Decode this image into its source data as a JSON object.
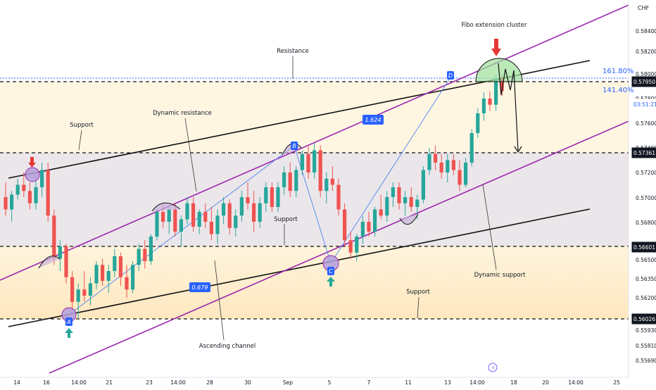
{
  "chart_data": {
    "type": "candlestick",
    "currency": "CHF",
    "ylim": [
      0.5547,
      0.5855
    ],
    "x_ticks": [
      "14",
      "16",
      "14:00",
      "21",
      "23",
      "14:00",
      "28",
      "30",
      "Sep",
      "5",
      "7",
      "11",
      "13",
      "14:00",
      "18",
      "20",
      "14:00",
      "25"
    ],
    "y_ticks": [
      "0.58400",
      "0.58200",
      "0.58000",
      "0.57800",
      "0.57600",
      "0.57400",
      "0.57200",
      "0.57000",
      "0.56800",
      "0.56600",
      "0.56500",
      "0.56350",
      "0.56200",
      "0.56026",
      "0.55930",
      "0.55810",
      "0.55690"
    ],
    "price_badges": [
      {
        "label": "0.57950",
        "value": 0.5795,
        "style": "dark"
      },
      {
        "label": "03:51:21",
        "value": 0.5786,
        "style": "time"
      },
      {
        "label": "0.57361",
        "value": 0.57361,
        "style": "dark"
      },
      {
        "label": "0.56601",
        "value": 0.56601,
        "style": "dark"
      },
      {
        "label": "0.56026",
        "value": 0.56026,
        "style": "dark"
      }
    ],
    "horizontal_levels": [
      0.5795,
      0.57361,
      0.56601,
      0.56026
    ],
    "fib_levels": [
      {
        "label": "161.80%",
        "value": 0.5799
      },
      {
        "label": "141.40%",
        "value": 0.57945
      }
    ],
    "pattern_points": [
      {
        "label": "A",
        "date_index": 12,
        "price": 0.5604
      },
      {
        "label": "B",
        "date_index": 51,
        "price": 0.57435
      },
      {
        "label": "C",
        "date_index": 58,
        "price": 0.5648
      },
      {
        "label": "D",
        "date_index": 79,
        "price": 0.5799
      }
    ],
    "ratios": [
      "0.679",
      "1.624"
    ],
    "annotations": [
      "Fibo extension cluster",
      "Resistance",
      "Support",
      "Dynamic resistance",
      "Support",
      "Ascending channel",
      "Dynamic support",
      "Support"
    ],
    "ohlc": [
      [
        0.57,
        0.5712,
        0.5685,
        0.569
      ],
      [
        0.569,
        0.5705,
        0.568,
        0.5702
      ],
      [
        0.5702,
        0.5715,
        0.5698,
        0.571
      ],
      [
        0.571,
        0.572,
        0.57,
        0.5705
      ],
      [
        0.5705,
        0.5712,
        0.569,
        0.5695
      ],
      [
        0.5695,
        0.5715,
        0.569,
        0.5708
      ],
      [
        0.5708,
        0.5728,
        0.57,
        0.5722
      ],
      [
        0.5722,
        0.5728,
        0.568,
        0.5685
      ],
      [
        0.5685,
        0.569,
        0.5645,
        0.565
      ],
      [
        0.565,
        0.5665,
        0.564,
        0.566
      ],
      [
        0.566,
        0.5662,
        0.563,
        0.5635
      ],
      [
        0.5635,
        0.564,
        0.5608,
        0.5615
      ],
      [
        0.5615,
        0.563,
        0.5602,
        0.5625
      ],
      [
        0.5625,
        0.564,
        0.5615,
        0.562
      ],
      [
        0.562,
        0.5635,
        0.5612,
        0.563
      ],
      [
        0.563,
        0.5648,
        0.5625,
        0.5645
      ],
      [
        0.5645,
        0.565,
        0.5628,
        0.5632
      ],
      [
        0.5632,
        0.5645,
        0.5622,
        0.564
      ],
      [
        0.564,
        0.5658,
        0.5635,
        0.5652
      ],
      [
        0.5652,
        0.5655,
        0.5628,
        0.5635
      ],
      [
        0.5635,
        0.5645,
        0.5618,
        0.5625
      ],
      [
        0.5625,
        0.5648,
        0.5622,
        0.5645
      ],
      [
        0.5645,
        0.5662,
        0.564,
        0.5658
      ],
      [
        0.5658,
        0.5665,
        0.5642,
        0.5648
      ],
      [
        0.5648,
        0.567,
        0.5645,
        0.5668
      ],
      [
        0.5668,
        0.569,
        0.5665,
        0.5688
      ],
      [
        0.5688,
        0.5695,
        0.5675,
        0.568
      ],
      [
        0.568,
        0.5692,
        0.567,
        0.569
      ],
      [
        0.569,
        0.5695,
        0.5668,
        0.5672
      ],
      [
        0.5672,
        0.5685,
        0.566,
        0.5682
      ],
      [
        0.5682,
        0.57,
        0.5678,
        0.5695
      ],
      [
        0.5695,
        0.57,
        0.5672,
        0.5676
      ],
      [
        0.5676,
        0.569,
        0.567,
        0.5688
      ],
      [
        0.5688,
        0.5695,
        0.5675,
        0.568
      ],
      [
        0.568,
        0.5692,
        0.5665,
        0.567
      ],
      [
        0.567,
        0.569,
        0.5662,
        0.5685
      ],
      [
        0.5685,
        0.57,
        0.5678,
        0.5695
      ],
      [
        0.5695,
        0.5698,
        0.567,
        0.5675
      ],
      [
        0.5675,
        0.569,
        0.5668,
        0.5685
      ],
      [
        0.5685,
        0.5705,
        0.568,
        0.57
      ],
      [
        0.57,
        0.5712,
        0.569,
        0.5695
      ],
      [
        0.5695,
        0.5705,
        0.5672,
        0.568
      ],
      [
        0.568,
        0.57,
        0.5675,
        0.5695
      ],
      [
        0.5695,
        0.5712,
        0.5688,
        0.5708
      ],
      [
        0.5708,
        0.5712,
        0.5688,
        0.5692
      ],
      [
        0.5692,
        0.5712,
        0.5688,
        0.5708
      ],
      [
        0.5708,
        0.5725,
        0.5702,
        0.572
      ],
      [
        0.572,
        0.5728,
        0.57,
        0.5705
      ],
      [
        0.5705,
        0.5725,
        0.57,
        0.5722
      ],
      [
        0.5722,
        0.5738,
        0.5718,
        0.5735
      ],
      [
        0.5735,
        0.5742,
        0.5715,
        0.572
      ],
      [
        0.572,
        0.5744,
        0.5715,
        0.5738
      ],
      [
        0.5738,
        0.5742,
        0.57,
        0.5705
      ],
      [
        0.5705,
        0.572,
        0.5695,
        0.5715
      ],
      [
        0.5715,
        0.5725,
        0.5705,
        0.571
      ],
      [
        0.571,
        0.5715,
        0.5685,
        0.569
      ],
      [
        0.569,
        0.5695,
        0.566,
        0.5665
      ],
      [
        0.5665,
        0.5672,
        0.565,
        0.5655
      ],
      [
        0.5655,
        0.567,
        0.5648,
        0.5668
      ],
      [
        0.5668,
        0.5685,
        0.5662,
        0.568
      ],
      [
        0.568,
        0.5688,
        0.5668,
        0.5672
      ],
      [
        0.5672,
        0.5692,
        0.5668,
        0.569
      ],
      [
        0.569,
        0.5702,
        0.5682,
        0.5685
      ],
      [
        0.5685,
        0.5705,
        0.568,
        0.57
      ],
      [
        0.57,
        0.5712,
        0.5692,
        0.5708
      ],
      [
        0.5708,
        0.5712,
        0.569,
        0.5695
      ],
      [
        0.5695,
        0.5705,
        0.5685,
        0.57
      ],
      [
        0.57,
        0.5708,
        0.5688,
        0.5692
      ],
      [
        0.5692,
        0.5702,
        0.5682,
        0.5698
      ],
      [
        0.5698,
        0.5725,
        0.5695,
        0.5722
      ],
      [
        0.5722,
        0.574,
        0.5718,
        0.5735
      ],
      [
        0.5735,
        0.5742,
        0.5722,
        0.5728
      ],
      [
        0.5728,
        0.5735,
        0.5715,
        0.572
      ],
      [
        0.572,
        0.5735,
        0.5712,
        0.573
      ],
      [
        0.573,
        0.5735,
        0.5718,
        0.5722
      ],
      [
        0.5722,
        0.573,
        0.5705,
        0.571
      ],
      [
        0.571,
        0.5732,
        0.5708,
        0.5728
      ],
      [
        0.5728,
        0.5755,
        0.5725,
        0.5752
      ],
      [
        0.5752,
        0.5772,
        0.5748,
        0.5768
      ],
      [
        0.5768,
        0.5785,
        0.5762,
        0.578
      ],
      [
        0.578,
        0.5786,
        0.577,
        0.5775
      ],
      [
        0.5775,
        0.5799,
        0.577,
        0.5796
      ],
      [
        0.5796,
        0.5799,
        0.5782,
        0.5786
      ]
    ]
  }
}
